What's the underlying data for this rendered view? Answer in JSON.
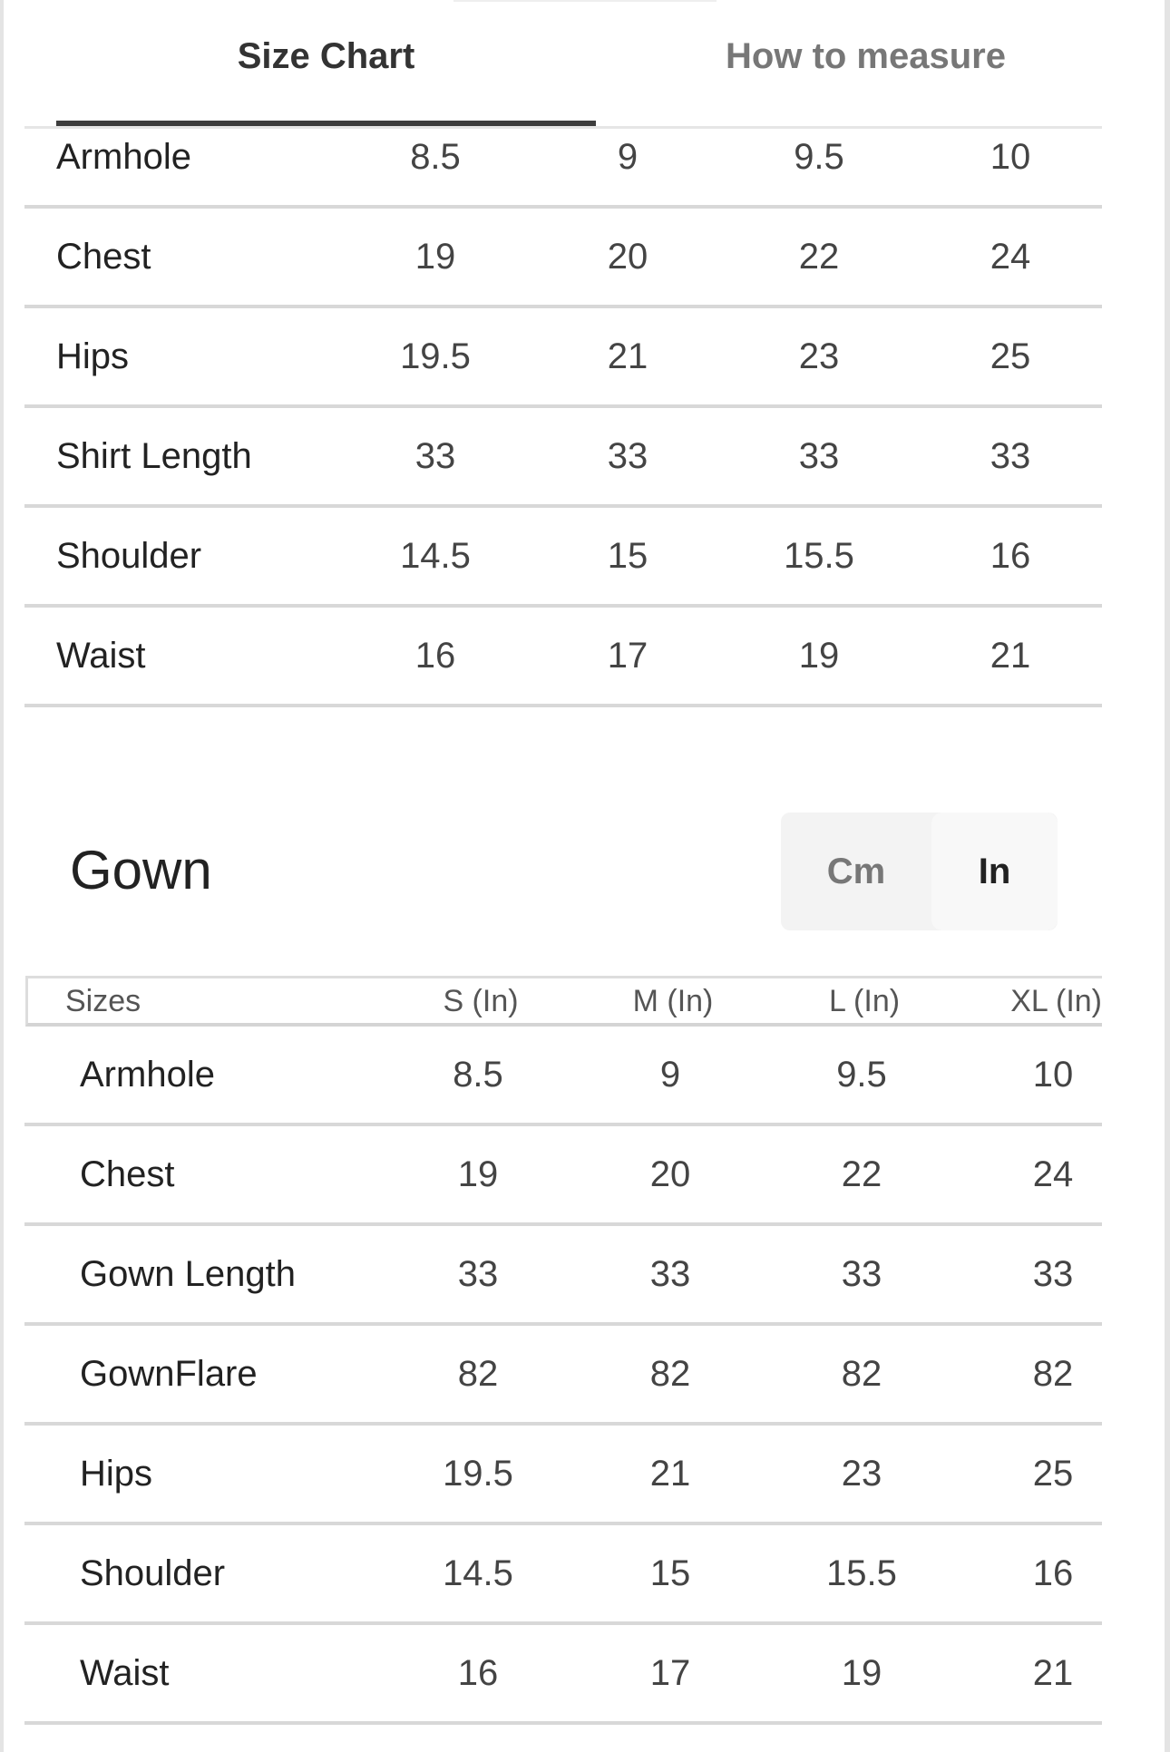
{
  "tabs": [
    {
      "label": "Size Chart",
      "active": true
    },
    {
      "label": "How to measure",
      "active": false
    }
  ],
  "table1": {
    "rows": [
      {
        "label": "Armhole",
        "values": [
          "8.5",
          "9",
          "9.5",
          "10"
        ]
      },
      {
        "label": "Chest",
        "values": [
          "19",
          "20",
          "22",
          "24"
        ]
      },
      {
        "label": "Hips",
        "values": [
          "19.5",
          "21",
          "23",
          "25"
        ]
      },
      {
        "label": "Shirt Length",
        "values": [
          "33",
          "33",
          "33",
          "33"
        ]
      },
      {
        "label": "Shoulder",
        "values": [
          "14.5",
          "15",
          "15.5",
          "16"
        ]
      },
      {
        "label": "Waist",
        "values": [
          "16",
          "17",
          "19",
          "21"
        ]
      }
    ]
  },
  "gown": {
    "title": "Gown",
    "units": {
      "cm": "Cm",
      "in": "In",
      "selected": "In"
    },
    "headers": [
      "Sizes",
      "S (In)",
      "M (In)",
      "L (In)",
      "XL (In)"
    ],
    "rows": [
      {
        "label": "Armhole",
        "values": [
          "8.5",
          "9",
          "9.5",
          "10"
        ]
      },
      {
        "label": "Chest",
        "values": [
          "19",
          "20",
          "22",
          "24"
        ]
      },
      {
        "label": "Gown Length",
        "values": [
          "33",
          "33",
          "33",
          "33"
        ]
      },
      {
        "label": "GownFlare",
        "values": [
          "82",
          "82",
          "82",
          "82"
        ]
      },
      {
        "label": "Hips",
        "values": [
          "19.5",
          "21",
          "23",
          "25"
        ]
      },
      {
        "label": "Shoulder",
        "values": [
          "14.5",
          "15",
          "15.5",
          "16"
        ]
      },
      {
        "label": "Waist",
        "values": [
          "16",
          "17",
          "19",
          "21"
        ]
      }
    ]
  }
}
